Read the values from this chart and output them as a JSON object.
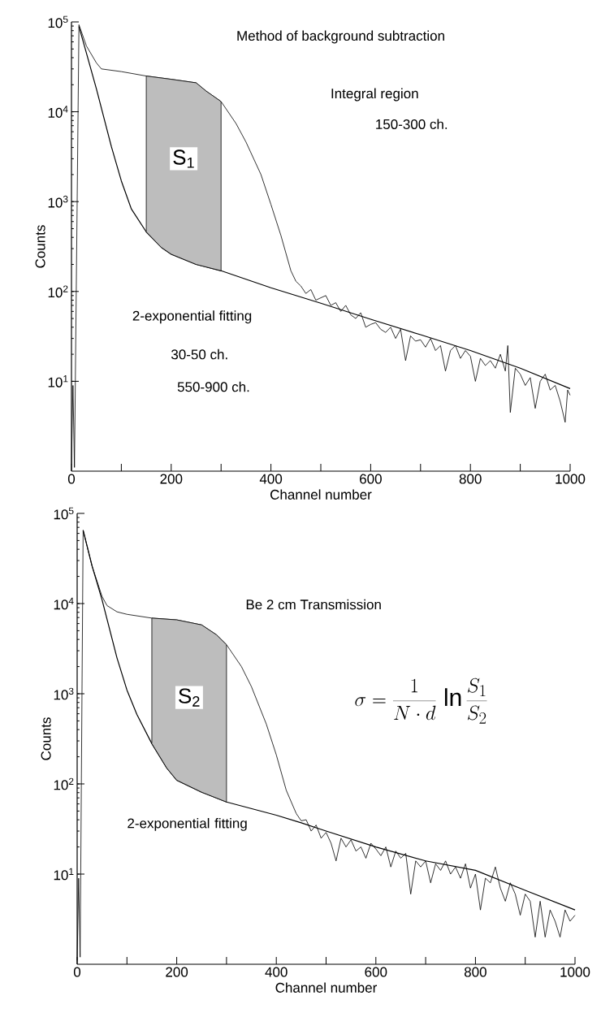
{
  "chart_data": [
    {
      "type": "line",
      "title": "Method of background subtraction",
      "xlabel": "Channel number",
      "ylabel": "Counts",
      "log": true,
      "annotations": [
        "Integral region",
        "150-300 ch.",
        "2-exponential fitting",
        "30-50 ch.",
        "550-900 ch."
      ],
      "xlim": [
        0,
        1000
      ],
      "ylim": [
        1,
        100000
      ],
      "xticks": [
        0,
        {
          "value": 100,
          "label": null
        },
        200,
        {
          "value": 300,
          "label": null
        },
        400,
        {
          "value": 500,
          "label": null
        },
        600,
        {
          "value": 700,
          "label": null
        },
        800,
        {
          "value": 900,
          "label": null
        },
        1000
      ],
      "yticks": [
        {
          "value": 10,
          "label": "10$^{1}$"
        },
        {
          "value": 100,
          "label": "10$^{2}$"
        },
        {
          "value": 1000,
          "label": "10$^{3}$"
        },
        {
          "value": 10000,
          "label": "10$^{4}$"
        },
        {
          "value": 100000,
          "label": "10$^{5}$"
        }
      ],
      "bands": [
        {
          "axis": "x",
          "from": 150,
          "to": 300,
          "label": "S$_{1}$",
          "color": "#bdbdbd"
        }
      ],
      "series": [
        {
          "color": "#000000",
          "x": [
            0,
            3,
            6,
            15,
            30,
            50,
            60,
            100,
            150,
            200,
            250,
            270,
            300,
            330,
            350,
            380,
            400,
            420,
            440,
            450,
            460,
            470,
            480,
            490,
            500,
            510,
            520,
            530,
            540,
            550,
            560,
            570,
            580,
            590,
            600,
            610,
            620,
            630,
            640,
            650,
            660,
            670,
            680,
            690,
            700,
            710,
            720,
            730,
            740,
            750,
            760,
            770,
            780,
            790,
            800,
            810,
            820,
            830,
            840,
            850,
            860,
            870,
            875,
            880,
            890,
            900,
            910,
            920,
            930,
            940,
            950,
            960,
            970,
            980,
            990,
            995,
            1000
          ],
          "values": [
            1.2,
            9,
            1.1,
            93000,
            54000,
            35000,
            30000,
            28000,
            25000,
            23000,
            21000,
            17000,
            13000,
            7400,
            4600,
            2000,
            930,
            420,
            170,
            130,
            115,
            95,
            105,
            80,
            85,
            90,
            70,
            75,
            60,
            70,
            55,
            50,
            58,
            40,
            43,
            45,
            38,
            35,
            40,
            30,
            38,
            17,
            32,
            28,
            29,
            24,
            30,
            22,
            25,
            13,
            22,
            25,
            18,
            22,
            19,
            10,
            18,
            15,
            17,
            14,
            20,
            13,
            25,
            4.5,
            14,
            12,
            9,
            11,
            5,
            10,
            12,
            8,
            9,
            6,
            3.5,
            8,
            7
          ]
        },
        {
          "color": "#000000",
          "x": [
            15,
            30,
            50,
            80,
            100,
            120,
            150,
            180,
            200,
            250,
            300,
            400,
            500,
            600,
            700,
            800,
            900,
            1000
          ],
          "values": [
            89000,
            45000,
            18000,
            4100,
            1700,
            830,
            460,
            310,
            260,
            200,
            170,
            110,
            74,
            49,
            33,
            22,
            14,
            8.3
          ]
        }
      ]
    },
    {
      "type": "line",
      "title": "Be 2 cm Transmission",
      "xlabel": "Channel number",
      "ylabel": "Counts",
      "log": true,
      "annotations": [
        "2-exponential fitting",
        "\\sigma = \\frac{1}{N\\cdot d}\\,\\ln\\frac{S_1}{S_2}"
      ],
      "xlim": [
        0,
        1000
      ],
      "ylim": [
        1,
        100000
      ],
      "xticks": [
        0,
        {
          "value": 100,
          "label": null
        },
        200,
        {
          "value": 300,
          "label": null
        },
        400,
        {
          "value": 500,
          "label": null
        },
        600,
        {
          "value": 700,
          "label": null
        },
        800,
        {
          "value": 900,
          "label": null
        },
        1000
      ],
      "yticks": [
        {
          "value": 10,
          "label": "10$^{1}$"
        },
        {
          "value": 100,
          "label": "10$^{2}$"
        },
        {
          "value": 1000,
          "label": "10$^{3}$"
        },
        {
          "value": 10000,
          "label": "10$^{4}$"
        },
        {
          "value": 100000,
          "label": "10$^{5}$"
        }
      ],
      "bands": [
        {
          "axis": "x",
          "from": 150,
          "to": 300,
          "label": "S$_{2}$",
          "color": "#bdbdbd"
        }
      ],
      "series": [
        {
          "color": "#000000",
          "x": [
            0,
            3,
            6,
            12,
            30,
            50,
            60,
            80,
            100,
            150,
            200,
            250,
            280,
            300,
            330,
            350,
            380,
            400,
            420,
            440,
            450,
            460,
            470,
            480,
            490,
            500,
            510,
            520,
            530,
            540,
            550,
            560,
            570,
            580,
            590,
            600,
            610,
            620,
            630,
            640,
            650,
            660,
            670,
            680,
            690,
            700,
            710,
            720,
            730,
            740,
            750,
            760,
            770,
            780,
            790,
            800,
            810,
            820,
            830,
            840,
            850,
            860,
            870,
            880,
            890,
            900,
            910,
            920,
            930,
            940,
            950,
            960,
            970,
            980,
            990,
            1000
          ],
          "values": [
            1.1,
            9,
            1.2,
            65000,
            26000,
            12000,
            9500,
            8100,
            7600,
            6900,
            6600,
            5800,
            4500,
            3500,
            2000,
            1200,
            460,
            210,
            85,
            47,
            39,
            40,
            30,
            35,
            25,
            29,
            22,
            14,
            25,
            20,
            24,
            18,
            20,
            15,
            22,
            19,
            16,
            20,
            12,
            18,
            15,
            17,
            6,
            14,
            12,
            14,
            8,
            13,
            11,
            14,
            10,
            12,
            9,
            13,
            7,
            10,
            4,
            9,
            8,
            12,
            7,
            5,
            8,
            6,
            3.5,
            6,
            5,
            2,
            5,
            2,
            4,
            3,
            2,
            4,
            3,
            3.5
          ]
        },
        {
          "color": "#000000",
          "x": [
            12,
            30,
            50,
            80,
            100,
            120,
            150,
            180,
            200,
            250,
            300,
            400,
            450,
            500,
            600,
            700,
            800,
            900,
            1000
          ],
          "values": [
            65000,
            26000,
            11000,
            2500,
            1100,
            590,
            280,
            150,
            110,
            81,
            63,
            45,
            37,
            30,
            20,
            14,
            11,
            6.6,
            4
          ]
        }
      ]
    }
  ]
}
